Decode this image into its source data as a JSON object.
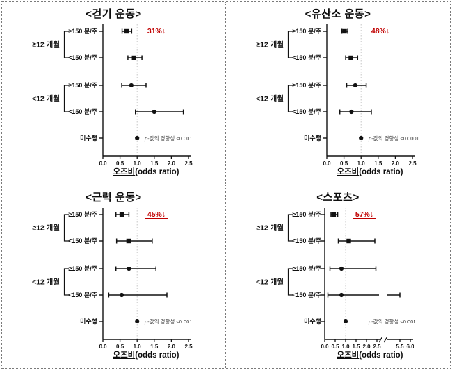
{
  "figure": {
    "background": "#ffffff",
    "accent_red": "#c00000",
    "plot_color": "#111111",
    "note_color": "#3d3d3d",
    "reference_line_color": "#c6c6c6"
  },
  "chart_data": [
    {
      "type": "forest",
      "title": "<걷기 운동>",
      "xlabel_main": "오즈비",
      "xlabel_sub": "(odds ratio)",
      "x_ticks": [
        "0.0",
        "0.5",
        "1.0",
        "1.5",
        "2.0",
        "2.5"
      ],
      "x_tick_values": [
        0,
        0.5,
        1,
        1.5,
        2,
        2.5
      ],
      "xlim": [
        0,
        2.6
      ],
      "reference_value": 1.0,
      "groups": [
        {
          "label": "≥12 개월",
          "rows": [
            0,
            1
          ]
        },
        {
          "label": "<12 개월",
          "rows": [
            2,
            3
          ]
        }
      ],
      "rows": [
        {
          "label": "≥150 분/주",
          "or": 0.69,
          "ci": [
            0.56,
            0.84
          ],
          "annotation": "31%↓"
        },
        {
          "label": "<150 분/주",
          "or": 0.91,
          "ci": [
            0.73,
            1.14
          ]
        },
        {
          "label": "≥150 분/주",
          "or": 0.83,
          "ci": [
            0.55,
            1.26
          ]
        },
        {
          "label": "<150 분/주",
          "or": 1.5,
          "ci": [
            0.95,
            2.35
          ]
        },
        {
          "label": "미수행",
          "or": 1.0,
          "ci": null,
          "note_italic": "p",
          "note_rest": "-값의 경향성 <0.001"
        }
      ]
    },
    {
      "type": "forest",
      "title": "<유산소 운동>",
      "xlabel_main": "오즈비",
      "xlabel_sub": "(odds ratio)",
      "x_ticks": [
        "0.0",
        "0.5",
        "1.0",
        "1.5",
        "2.0",
        "2.5"
      ],
      "x_tick_values": [
        0,
        0.5,
        1,
        1.5,
        2,
        2.5
      ],
      "xlim": [
        0,
        2.6
      ],
      "reference_value": 1.0,
      "groups": [
        {
          "label": "≥12 개월",
          "rows": [
            0,
            1
          ]
        },
        {
          "label": "<12 개월",
          "rows": [
            2,
            3
          ]
        }
      ],
      "rows": [
        {
          "label": "≥150 분/주",
          "or": 0.52,
          "ci": [
            0.44,
            0.61
          ],
          "annotation": "48%↓"
        },
        {
          "label": "<150 분/주",
          "or": 0.7,
          "ci": [
            0.55,
            0.9
          ]
        },
        {
          "label": "≥150 분/주",
          "or": 0.83,
          "ci": [
            0.58,
            1.15
          ]
        },
        {
          "label": "<150 분/주",
          "or": 0.72,
          "ci": [
            0.38,
            1.3
          ]
        },
        {
          "label": "미수행",
          "or": 1.0,
          "ci": null,
          "note_italic": "p",
          "note_rest": "-값의 경향성 <0.0001"
        }
      ]
    },
    {
      "type": "forest",
      "title": "<근력 운동>",
      "xlabel_main": "오즈비",
      "xlabel_sub": "(odds ratio)",
      "x_ticks": [
        "0.0",
        "0.5",
        "1.0",
        "1.5",
        "2.0",
        "2.5"
      ],
      "x_tick_values": [
        0,
        0.5,
        1,
        1.5,
        2,
        2.5
      ],
      "xlim": [
        0,
        2.6
      ],
      "reference_value": 1.0,
      "groups": [
        {
          "label": "≥12 개월",
          "rows": [
            0,
            1
          ]
        },
        {
          "label": "<12 개월",
          "rows": [
            2,
            3
          ]
        }
      ],
      "rows": [
        {
          "label": "≥150 분/주",
          "or": 0.55,
          "ci": [
            0.38,
            0.76
          ],
          "annotation": "45%↓"
        },
        {
          "label": "<150 분/주",
          "or": 0.75,
          "ci": [
            0.4,
            1.44
          ]
        },
        {
          "label": "≥150 분/주",
          "or": 0.76,
          "ci": [
            0.38,
            1.55
          ]
        },
        {
          "label": "<150 분/주",
          "or": 0.55,
          "ci": [
            0.17,
            1.87
          ]
        },
        {
          "label": "미수행",
          "or": 1.0,
          "ci": null,
          "note_italic": "p",
          "note_rest": "-값의 경향성 <0.001"
        }
      ]
    },
    {
      "type": "forest",
      "title": "<스포츠>",
      "xlabel_main": "오즈비",
      "xlabel_sub": "(odds ratio)",
      "x_ticks": [
        "0.0",
        "0.5",
        "1.0",
        "1.5",
        "2.0",
        "2.5",
        "5.5",
        "6.0"
      ],
      "x_tick_values": [
        0,
        0.5,
        1,
        1.5,
        2,
        2.5,
        5.5,
        6
      ],
      "xlim": [
        0,
        6.0
      ],
      "axis_break": {
        "after": 2.5,
        "resume": 5.0
      },
      "reference_value": 1.0,
      "groups": [
        {
          "label": "≥12 개월",
          "rows": [
            0,
            1
          ]
        },
        {
          "label": "<12 개월",
          "rows": [
            2,
            3
          ]
        }
      ],
      "rows": [
        {
          "label": "≥150 분/주",
          "or": 0.43,
          "ci": [
            0.3,
            0.62
          ],
          "annotation": "57%↓"
        },
        {
          "label": "<150 분/주",
          "or": 1.15,
          "ci": [
            0.65,
            2.4
          ]
        },
        {
          "label": "≥150 분/주",
          "or": 0.8,
          "ci": [
            0.25,
            2.45
          ]
        },
        {
          "label": "<150 분/주",
          "or": 0.8,
          "ci": [
            0.15,
            5.5
          ],
          "ci_break": true
        },
        {
          "label": "미수행",
          "or": 1.0,
          "ci": null,
          "note_italic": "p",
          "note_rest": "-값의 경향성 <0.001"
        }
      ]
    }
  ]
}
